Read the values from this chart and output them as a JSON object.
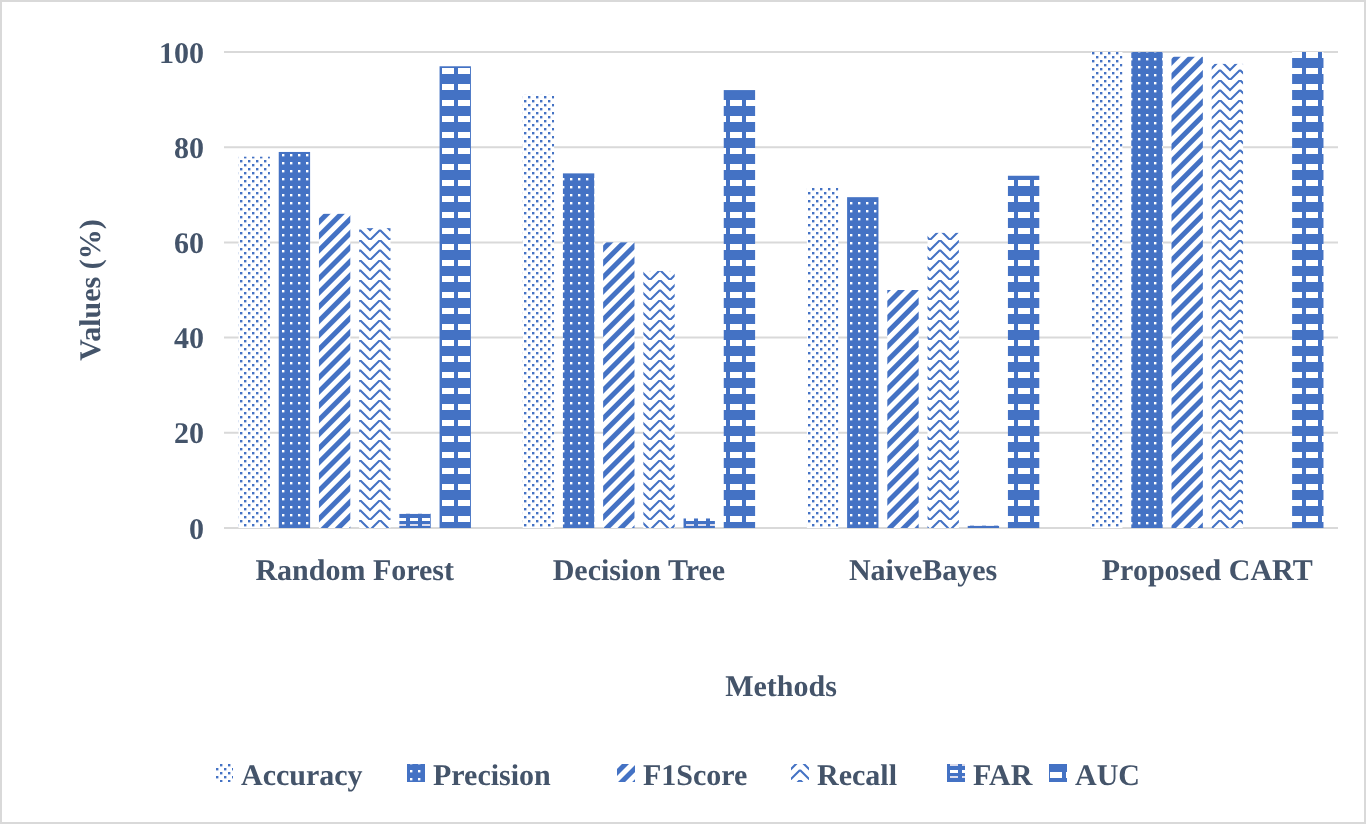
{
  "chart_data": {
    "type": "bar",
    "xlabel": "Methods",
    "ylabel": "Values (%)",
    "categories": [
      "Random Forest",
      "Decision Tree",
      "NaiveBayes",
      "Proposed CART"
    ],
    "series": [
      {
        "name": "Accuracy",
        "color": "#4472c4",
        "values": [
          78,
          91,
          71.5,
          100
        ]
      },
      {
        "name": "Precision",
        "color": "#4472c4",
        "values": [
          79,
          74.5,
          69.5,
          100
        ]
      },
      {
        "name": "F1Score",
        "color": "#4472c4",
        "values": [
          66,
          60,
          50,
          99
        ]
      },
      {
        "name": "Recall",
        "color": "#4472c4",
        "values": [
          63,
          54,
          62,
          97.5
        ]
      },
      {
        "name": "FAR",
        "color": "#4472c4",
        "values": [
          3,
          2,
          0.5,
          0
        ]
      },
      {
        "name": "AUC",
        "color": "#4472c4",
        "values": [
          97,
          92,
          74,
          100
        ]
      }
    ],
    "ylim": [
      0,
      100
    ],
    "yticks": [
      0,
      20,
      40,
      60,
      80,
      100
    ],
    "grid": "y",
    "legend": "bottom"
  }
}
